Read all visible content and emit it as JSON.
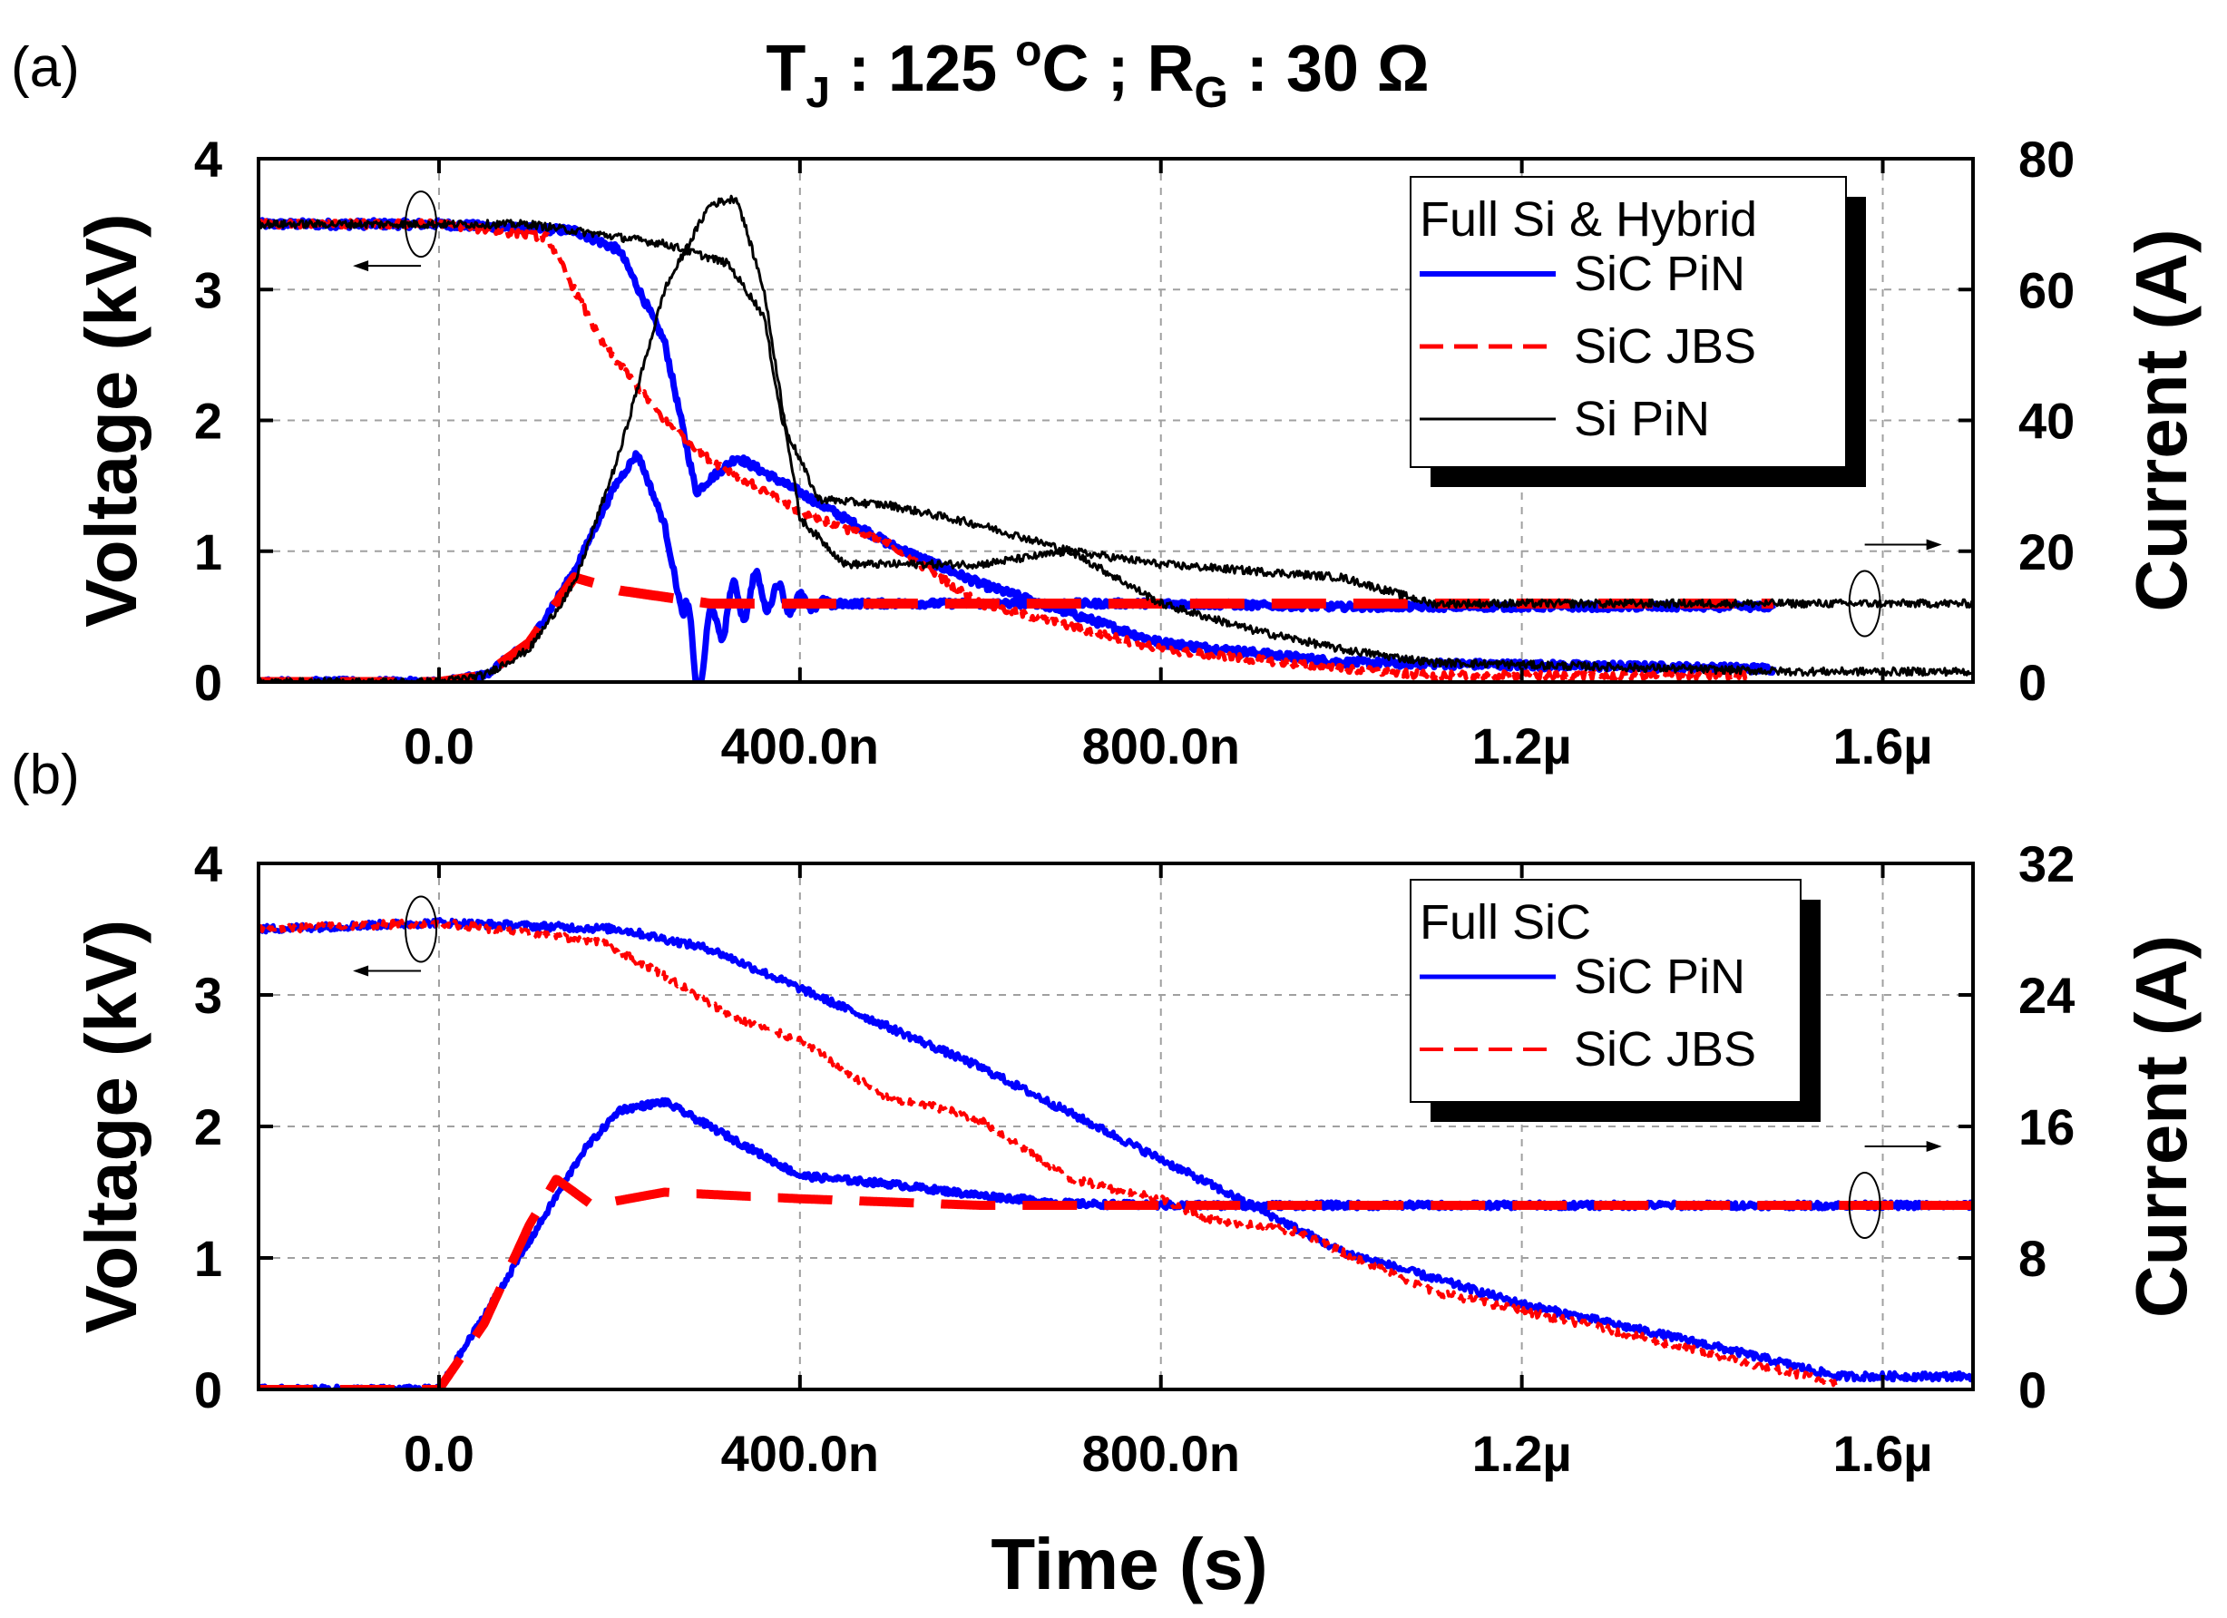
{
  "title": {
    "t_main": "T",
    "t_sub": "J",
    "t_rest": " : 125 ",
    "t_deg": "o",
    "t_unit": "C ; R",
    "r_sub": "G",
    "r_rest": " : 30 Ω"
  },
  "xlabel": "Time (s)",
  "colors": {
    "sic_pin": "#0000ff",
    "sic_jbs": "#ff0000",
    "si_pin": "#000000",
    "grid": "#a0a0a0"
  },
  "chart_data": [
    {
      "type": "line",
      "panel": "(a)",
      "title": "",
      "xlabel": "",
      "ylabel": "Voltage (kV)",
      "y2label": "Current (A)",
      "xlim": [
        -2e-07,
        1.7e-06
      ],
      "ylim": [
        0,
        4
      ],
      "y2lim": [
        0,
        80
      ],
      "x_ticks": [
        0,
        4e-07,
        8e-07,
        1.2e-06,
        1.6e-06
      ],
      "x_tick_labels": [
        "0.0",
        "400.0n",
        "800.0n",
        "1.2µ",
        "1.6µ"
      ],
      "y_ticks": [
        "0",
        "1",
        "2",
        "3",
        "4"
      ],
      "y2_ticks": [
        "0",
        "20",
        "40",
        "60",
        "80"
      ],
      "grid": true,
      "legend": {
        "placement": "top-right",
        "title": "Full Si & Hybrid",
        "entries": [
          "SiC PiN",
          "SiC JBS",
          "Si PiN"
        ]
      },
      "series": [
        {
          "name": "SiC PiN",
          "quantity": "voltage",
          "axis": "left",
          "color": "#0000ff",
          "dash": "solid",
          "width": 7,
          "noise": 0.03,
          "x": [
            -2e-07,
            0,
            1.5e-07,
            2e-07,
            2.5e-07,
            2.85e-07,
            3e-07,
            3.3e-07,
            4e-07,
            5e-07,
            6e-07,
            8e-07,
            1e-06,
            1.3e-06,
            1.48e-06
          ],
          "y": [
            3.5,
            3.5,
            3.45,
            3.3,
            2.6,
            1.45,
            1.55,
            1.72,
            1.45,
            1.05,
            0.75,
            0.3,
            0.15,
            0.12,
            0.1
          ]
        },
        {
          "name": "SiC PiN",
          "quantity": "current",
          "axis": "right",
          "color": "#0000ff",
          "dash": "solid",
          "width": 7,
          "noise": 0.5,
          "x": [
            -2e-07,
            0,
            5e-08,
            1e-07,
            1.5e-07,
            1.95e-07,
            2.2e-07,
            2.5e-07,
            2.7e-07,
            2.85e-07,
            3.1e-07,
            3.5e-07,
            4e-07,
            6e-07,
            8e-07,
            1e-06,
            1.3e-06,
            1.48e-06
          ],
          "y": [
            0,
            0,
            1,
            6,
            17,
            30,
            35,
            24,
            10,
            2,
            10,
            14,
            12,
            12,
            12,
            11.5,
            11.5,
            11.5
          ],
          "osc": {
            "start": 2.7e-07,
            "end": 4.5e-07,
            "amp": 5,
            "period": 2.5e-08
          }
        },
        {
          "name": "SiC JBS",
          "quantity": "voltage",
          "axis": "left",
          "color": "#ff0000",
          "dash": "dash",
          "width": 5,
          "noise": 0.03,
          "x": [
            -2e-07,
            0,
            1.2e-07,
            1.8e-07,
            2.5e-07,
            3e-07,
            4e-07,
            5e-07,
            6e-07,
            8e-07,
            1e-06,
            1.1e-06,
            1.45e-06
          ],
          "y": [
            3.5,
            3.5,
            3.4,
            2.6,
            2.0,
            1.7,
            1.3,
            1.05,
            0.6,
            0.25,
            0.1,
            0.05,
            0.05
          ]
        },
        {
          "name": "SiC JBS",
          "quantity": "current",
          "axis": "right",
          "color": "#ff0000",
          "dash": "longdash",
          "width": 11,
          "noise": 0,
          "x": [
            -2e-07,
            0,
            5e-08,
            1e-07,
            1.5e-07,
            2e-07,
            2.5e-07,
            3e-07,
            4e-07,
            6e-07,
            8e-07,
            1e-06,
            1.3e-06,
            1.48e-06
          ],
          "y": [
            0,
            0,
            1,
            6,
            16,
            14,
            13,
            12,
            12,
            12,
            12,
            12,
            12,
            12
          ]
        },
        {
          "name": "Si PiN",
          "quantity": "voltage",
          "axis": "left",
          "color": "#000000",
          "dash": "solid",
          "width": 3,
          "noise": 0.03,
          "x": [
            -2e-07,
            1e-07,
            2.5e-07,
            3.2e-07,
            3.6e-07,
            3.8e-07,
            4.2e-07,
            5e-07,
            6e-07,
            7e-07,
            8e-07,
            9e-07,
            1e-06,
            1.1e-06,
            1.5e-06,
            1.7e-06
          ],
          "y": [
            3.5,
            3.5,
            3.35,
            3.2,
            2.8,
            2.0,
            1.4,
            1.35,
            1.2,
            1.0,
            0.6,
            0.4,
            0.25,
            0.15,
            0.08,
            0.08
          ]
        },
        {
          "name": "Si PiN",
          "quantity": "current",
          "axis": "right",
          "color": "#000000",
          "dash": "solid",
          "width": 3,
          "noise": 0.6,
          "x": [
            -2e-07,
            0,
            5e-08,
            1e-07,
            1.5e-07,
            2e-07,
            2.5e-07,
            3e-07,
            3.3e-07,
            3.6e-07,
            4e-07,
            4.5e-07,
            5e-07,
            6e-07,
            7e-07,
            8e-07,
            9e-07,
            1e-06,
            1.05e-06,
            1.1e-06,
            1.7e-06
          ],
          "y": [
            0,
            0,
            1,
            5,
            15,
            35,
            60,
            73,
            74,
            60,
            25,
            18,
            18,
            18,
            20,
            18,
            17,
            16,
            14,
            12,
            12
          ]
        }
      ],
      "annotations": [
        {
          "type": "ellipse-arrow",
          "x": -2e-08,
          "y": 3.5,
          "direction": "left"
        },
        {
          "type": "ellipse-arrow",
          "x": 1.58e-06,
          "y": 0.6,
          "direction": "right"
        }
      ]
    },
    {
      "type": "line",
      "panel": "(b)",
      "title": "",
      "xlabel": "Time (s)",
      "ylabel": "Voltage (kV)",
      "y2label": "Current (A)",
      "xlim": [
        -2e-07,
        1.7e-06
      ],
      "ylim": [
        0,
        4
      ],
      "y2lim": [
        0,
        32
      ],
      "x_ticks": [
        0,
        4e-07,
        8e-07,
        1.2e-06,
        1.6e-06
      ],
      "x_tick_labels": [
        "0.0",
        "400.0n",
        "800.0n",
        "1.2µ",
        "1.6µ"
      ],
      "y_ticks": [
        "0",
        "1",
        "2",
        "3",
        "4"
      ],
      "y2_ticks": [
        "0",
        "8",
        "16",
        "24",
        "32"
      ],
      "grid": true,
      "legend": {
        "placement": "top-right",
        "title": "Full SiC",
        "entries": [
          "SiC PiN",
          "SiC JBS"
        ]
      },
      "series": [
        {
          "name": "SiC PiN",
          "quantity": "voltage",
          "axis": "left",
          "color": "#0000ff",
          "dash": "solid",
          "width": 5,
          "noise": 0.03,
          "x": [
            -2e-07,
            0,
            2e-07,
            3e-07,
            4e-07,
            5e-07,
            6e-07,
            7e-07,
            8e-07,
            9e-07,
            1e-06,
            1.2e-06,
            1.4e-06,
            1.55e-06,
            1.7e-06
          ],
          "y": [
            3.5,
            3.55,
            3.5,
            3.35,
            3.05,
            2.75,
            2.45,
            2.1,
            1.75,
            1.4,
            1.05,
            0.65,
            0.35,
            0.1,
            0.1
          ]
        },
        {
          "name": "SiC PiN",
          "quantity": "current",
          "axis": "right",
          "color": "#0000ff",
          "dash": "solid",
          "width": 6,
          "noise": 0.2,
          "x": [
            -2e-07,
            0,
            1e-07,
            1.6e-07,
            2e-07,
            2.5e-07,
            3e-07,
            4e-07,
            5e-07,
            6e-07,
            7e-07,
            8e-07,
            1e-06,
            1.4e-06,
            1.7e-06
          ],
          "y": [
            0,
            0,
            9,
            14.5,
            17,
            17.5,
            16,
            13,
            12.5,
            11.8,
            11.3,
            11.2,
            11.2,
            11.2,
            11.2
          ]
        },
        {
          "name": "SiC JBS",
          "quantity": "voltage",
          "axis": "left",
          "color": "#ff0000",
          "dash": "dash",
          "width": 4,
          "noise": 0.03,
          "x": [
            -2e-07,
            0,
            1.8e-07,
            2.5e-07,
            3.2e-07,
            4e-07,
            5e-07,
            5.5e-07,
            6e-07,
            7e-07,
            8e-07,
            8.5e-07,
            9.5e-07,
            1.1e-06,
            1.3e-06,
            1.45e-06,
            1.55e-06
          ],
          "y": [
            3.5,
            3.55,
            3.4,
            3.15,
            2.85,
            2.65,
            2.2,
            2.15,
            2.05,
            1.6,
            1.45,
            1.3,
            1.2,
            0.75,
            0.45,
            0.2,
            0.05
          ]
        },
        {
          "name": "SiC JBS",
          "quantity": "current",
          "axis": "right",
          "color": "#ff0000",
          "dash": "longdash",
          "width": 10,
          "noise": 0,
          "x": [
            -2e-07,
            0,
            5e-08,
            1e-07,
            1.3e-07,
            1.7e-07,
            2.5e-07,
            4e-07,
            6e-07,
            8e-07,
            1e-06,
            1.4e-06,
            1.7e-06
          ],
          "y": [
            0,
            0,
            4,
            10,
            12.8,
            11.2,
            12,
            11.6,
            11.2,
            11.2,
            11.2,
            11.2,
            11.2
          ]
        }
      ],
      "annotations": [
        {
          "type": "ellipse-arrow",
          "x": -2e-08,
          "y": 3.5,
          "direction": "left"
        },
        {
          "type": "ellipse-arrow",
          "x": 1.58e-06,
          "y": 1.4,
          "direction": "right"
        }
      ]
    }
  ]
}
